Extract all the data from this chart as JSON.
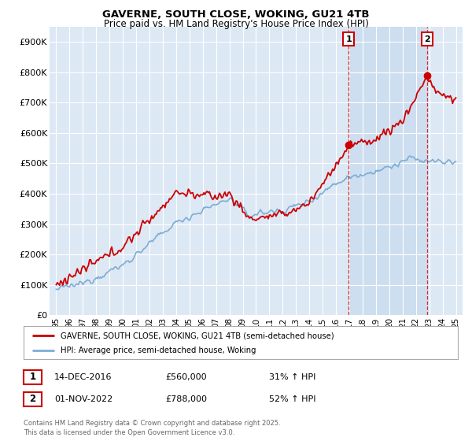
{
  "title": "GAVERNE, SOUTH CLOSE, WOKING, GU21 4TB",
  "subtitle": "Price paid vs. HM Land Registry's House Price Index (HPI)",
  "ylabel_ticks": [
    "£0",
    "£100K",
    "£200K",
    "£300K",
    "£400K",
    "£500K",
    "£600K",
    "£700K",
    "£800K",
    "£900K"
  ],
  "ytick_values": [
    0,
    100000,
    200000,
    300000,
    400000,
    500000,
    600000,
    700000,
    800000,
    900000
  ],
  "ylim": [
    0,
    950000
  ],
  "xlim_start": 1994.5,
  "xlim_end": 2025.5,
  "plot_bg_color": "#dde8f5",
  "grid_color": "#ffffff",
  "property_color": "#cc0000",
  "hpi_color": "#7eadd4",
  "shade_color": "#ccddf0",
  "sale1_date": "14-DEC-2016",
  "sale1_price": "£560,000",
  "sale1_hpi": "31% ↑ HPI",
  "sale1_year": 2016.95,
  "sale1_value": 560000,
  "sale2_date": "01-NOV-2022",
  "sale2_price": "£788,000",
  "sale2_hpi": "52% ↑ HPI",
  "sale2_year": 2022.83,
  "sale2_value": 788000,
  "legend_property": "GAVERNE, SOUTH CLOSE, WOKING, GU21 4TB (semi-detached house)",
  "legend_hpi": "HPI: Average price, semi-detached house, Woking",
  "footer": "Contains HM Land Registry data © Crown copyright and database right 2025.\nThis data is licensed under the Open Government Licence v3.0.",
  "xtick_years": [
    1995,
    1996,
    1997,
    1998,
    1999,
    2000,
    2001,
    2002,
    2003,
    2004,
    2005,
    2006,
    2007,
    2008,
    2009,
    2010,
    2011,
    2012,
    2013,
    2014,
    2015,
    2016,
    2017,
    2018,
    2019,
    2020,
    2021,
    2022,
    2023,
    2024,
    2025
  ]
}
